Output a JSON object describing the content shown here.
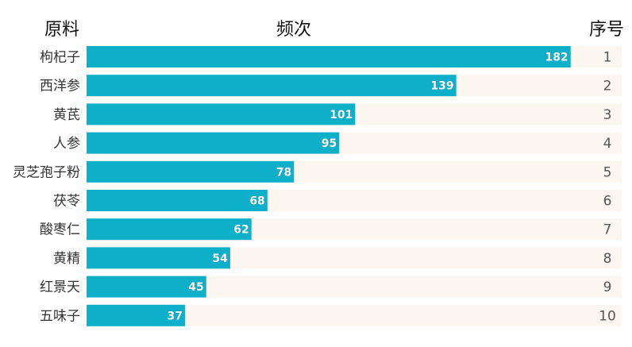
{
  "headers": {
    "left": "原料",
    "center": "频次",
    "right": "序号"
  },
  "colors": {
    "bar": "#0eafc9",
    "track": "#fbf7f0",
    "value_text": "#ffffff"
  },
  "chart_data": {
    "type": "bar",
    "orientation": "horizontal",
    "categories": [
      "枸杞子",
      "西洋参",
      "黄芪",
      "人参",
      "灵芝孢子粉",
      "茯苓",
      "酸枣仁",
      "黄精",
      "红景天",
      "五味子"
    ],
    "values": [
      182,
      139,
      101,
      95,
      78,
      68,
      62,
      54,
      45,
      37
    ],
    "ranks": [
      "1",
      "2",
      "3",
      "4",
      "5",
      "6",
      "7",
      "8",
      "9",
      "10"
    ],
    "xlim": [
      0,
      200
    ],
    "data_labels": true,
    "grid": false
  }
}
